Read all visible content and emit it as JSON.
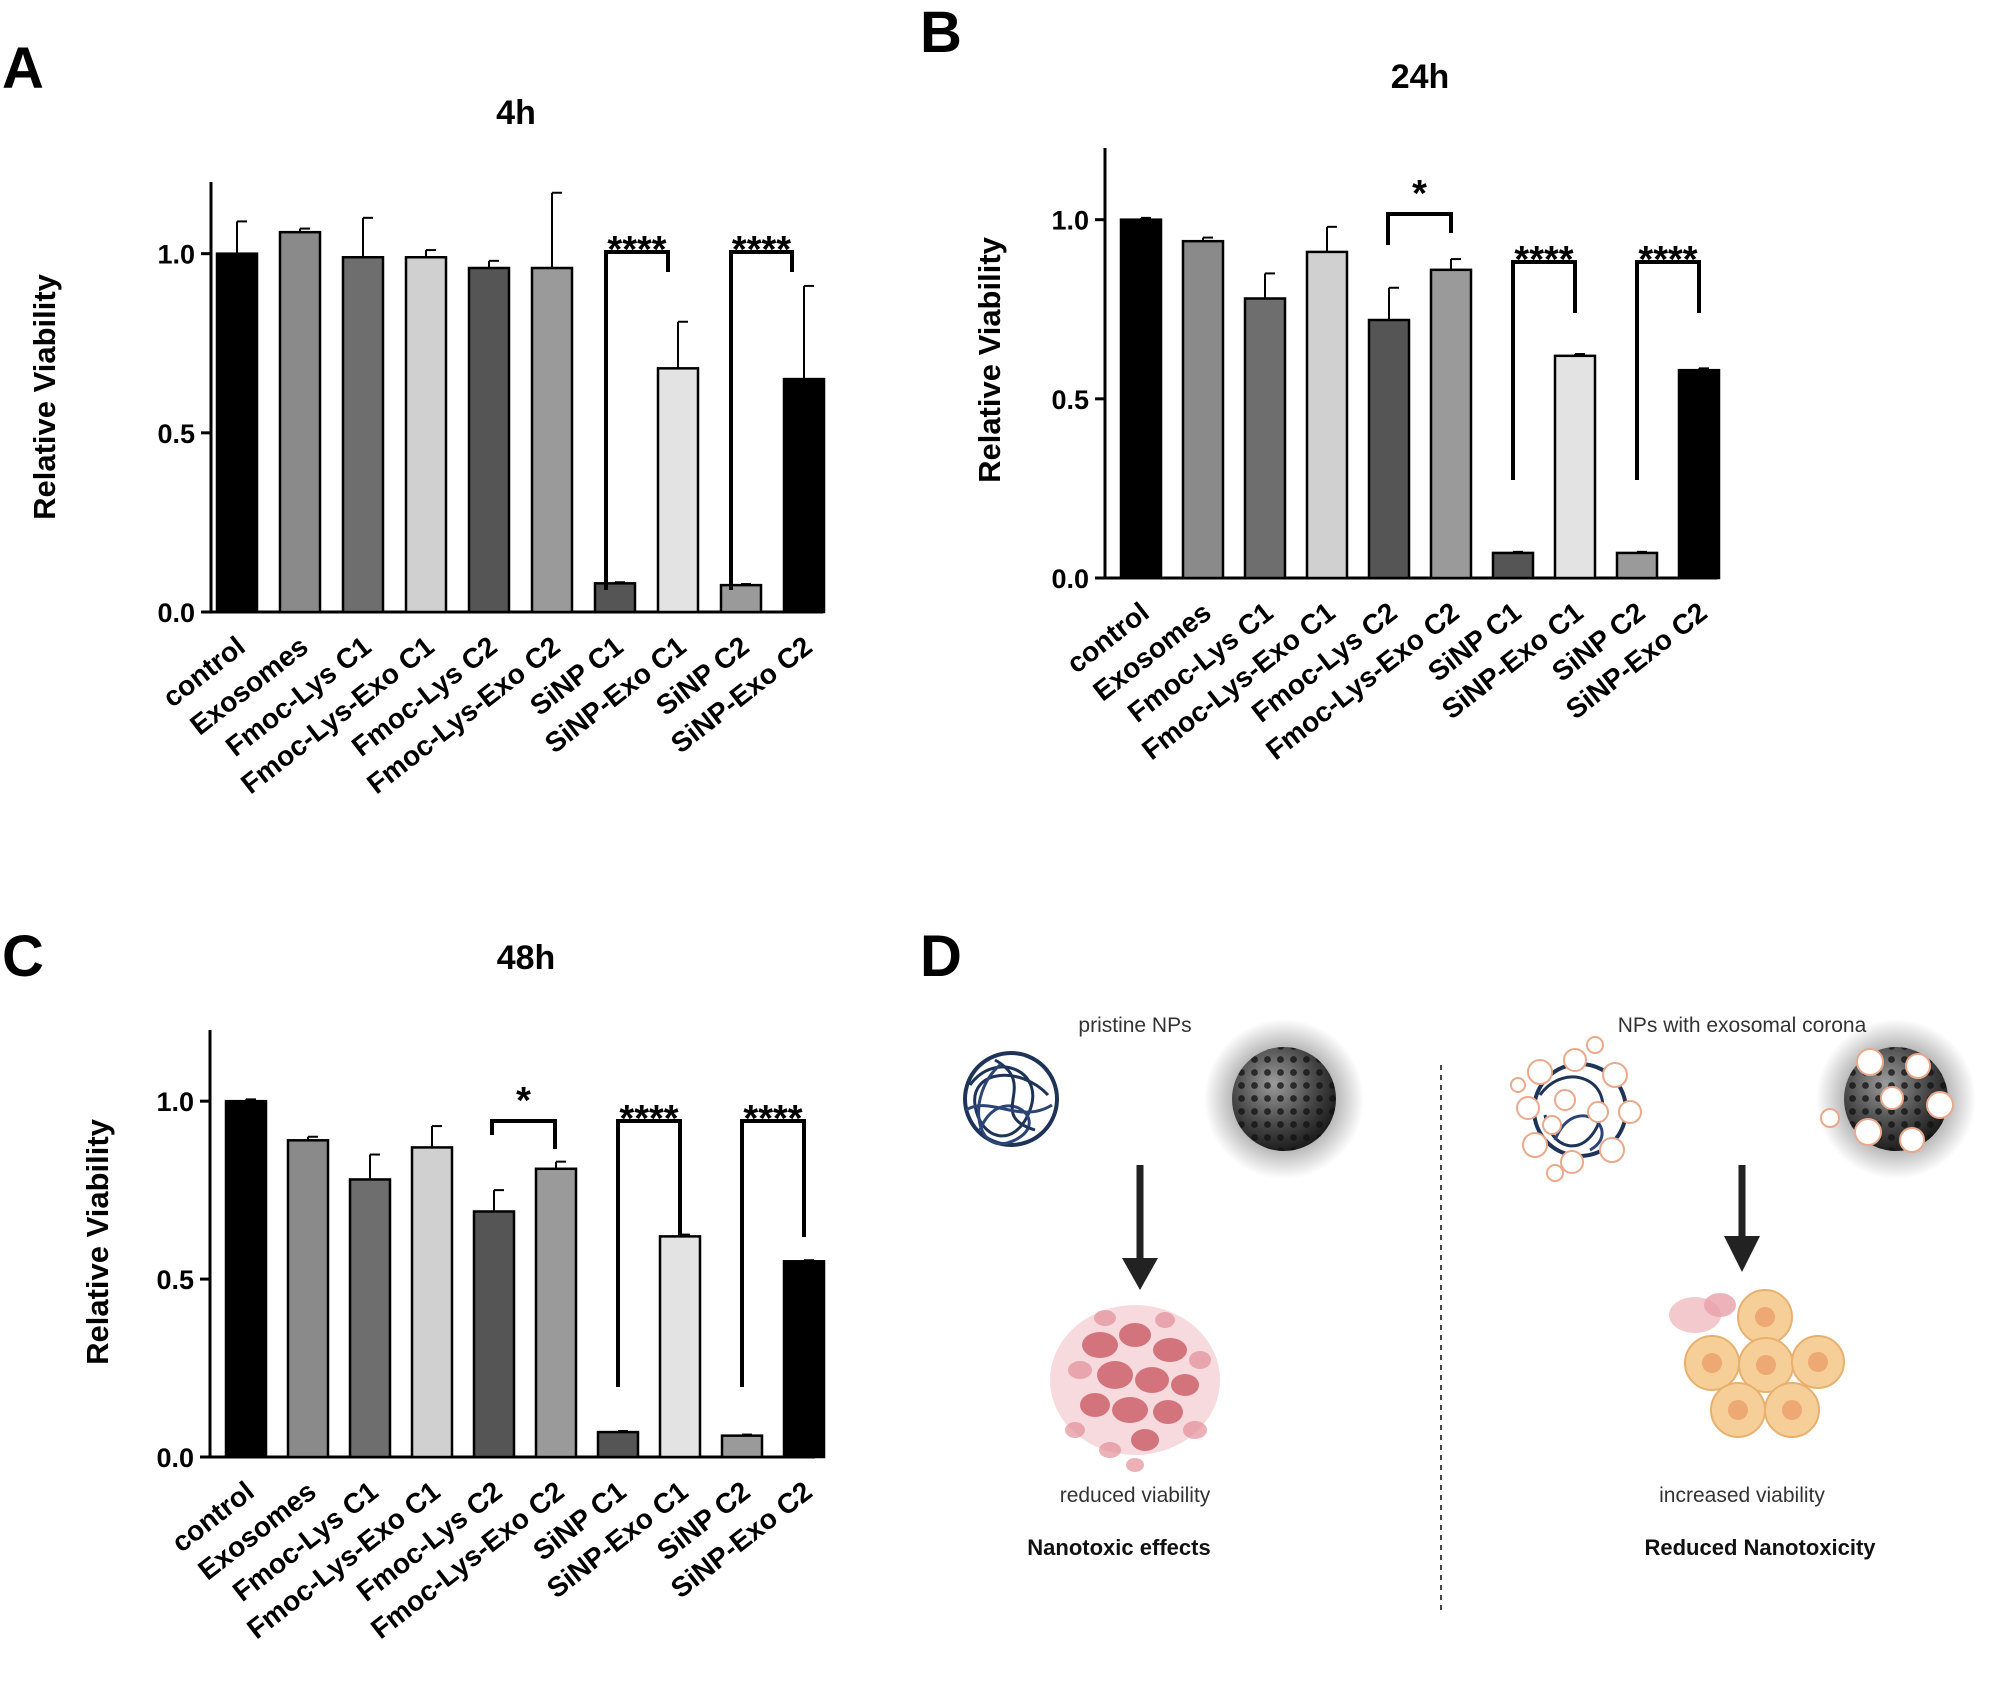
{
  "chart_data": [
    {
      "panel": "A",
      "type": "bar",
      "title": "4h",
      "xlabel": "",
      "ylabel": "Relative Viability",
      "ylim": [
        0,
        1.2
      ],
      "yticks": [
        "0.0",
        "0.5",
        "1.0"
      ],
      "categories": [
        "control",
        "Exosomes",
        "Fmoc-Lys C1",
        "Fmoc-Lys-Exo C1",
        "Fmoc-Lys C2",
        "Fmoc-Lys-Exo C2",
        "SiNP C1",
        "SiNP-Exo C1",
        "SiNP C2",
        "SiNP-Exo C2"
      ],
      "values": [
        1.0,
        1.06,
        0.99,
        0.99,
        0.96,
        0.96,
        0.08,
        0.68,
        0.075,
        0.65
      ],
      "errors": [
        0.09,
        0.01,
        0.11,
        0.02,
        0.02,
        0.21,
        0.003,
        0.13,
        0.003,
        0.26
      ],
      "colors": [
        "#000000",
        "#8a8a8a",
        "#6e6e6e",
        "#d0d0d0",
        "#555555",
        "#9a9a9a",
        "#555555",
        "#e3e3e3",
        "#9a9a9a",
        "#000000"
      ],
      "significance": [
        {
          "from": 6,
          "to": 7,
          "label": "****"
        },
        {
          "from": 8,
          "to": 9,
          "label": "****"
        }
      ]
    },
    {
      "panel": "B",
      "type": "bar",
      "title": "24h",
      "xlabel": "",
      "ylabel": "Relative Viability",
      "ylim": [
        0,
        1.2
      ],
      "yticks": [
        "0.0",
        "0.5",
        "1.0"
      ],
      "categories": [
        "control",
        "Exosomes",
        "Fmoc-Lys C1",
        "Fmoc-Lys-Exo C1",
        "Fmoc-Lys C2",
        "Fmoc-Lys-Exo C2",
        "SiNP C1",
        "SiNP-Exo C1",
        "SiNP C2",
        "SiNP-Exo C2"
      ],
      "values": [
        1.0,
        0.94,
        0.78,
        0.91,
        0.72,
        0.86,
        0.07,
        0.62,
        0.07,
        0.58
      ],
      "errors": [
        0.005,
        0.01,
        0.07,
        0.07,
        0.09,
        0.03,
        0.003,
        0.005,
        0.003,
        0.005
      ],
      "colors": [
        "#000000",
        "#8a8a8a",
        "#6e6e6e",
        "#d0d0d0",
        "#555555",
        "#9a9a9a",
        "#555555",
        "#e3e3e3",
        "#9a9a9a",
        "#000000"
      ],
      "significance": [
        {
          "from": 4,
          "to": 5,
          "label": "*"
        },
        {
          "from": 6,
          "to": 7,
          "label": "****"
        },
        {
          "from": 8,
          "to": 9,
          "label": "****"
        }
      ]
    },
    {
      "panel": "C",
      "type": "bar",
      "title": "48h",
      "xlabel": "",
      "ylabel": "Relative Viability",
      "ylim": [
        0,
        1.2
      ],
      "yticks": [
        "0.0",
        "0.5",
        "1.0"
      ],
      "categories": [
        "control",
        "Exosomes",
        "Fmoc-Lys C1",
        "Fmoc-Lys-Exo C1",
        "Fmoc-Lys C2",
        "Fmoc-Lys-Exo C2",
        "SiNP C1",
        "SiNP-Exo C1",
        "SiNP C2",
        "SiNP-Exo C2"
      ],
      "values": [
        1.0,
        0.89,
        0.78,
        0.87,
        0.69,
        0.81,
        0.07,
        0.62,
        0.06,
        0.55
      ],
      "errors": [
        0.005,
        0.01,
        0.07,
        0.06,
        0.06,
        0.02,
        0.003,
        0.005,
        0.003,
        0.003
      ],
      "colors": [
        "#000000",
        "#8a8a8a",
        "#6e6e6e",
        "#d0d0d0",
        "#555555",
        "#9a9a9a",
        "#555555",
        "#e3e3e3",
        "#9a9a9a",
        "#000000"
      ],
      "significance": [
        {
          "from": 4,
          "to": 5,
          "label": "*"
        },
        {
          "from": 6,
          "to": 7,
          "label": "****"
        },
        {
          "from": 8,
          "to": 9,
          "label": "****"
        }
      ]
    }
  ],
  "panel_letters": {
    "a": "A",
    "b": "B",
    "c": "C",
    "d": "D"
  },
  "schematic": {
    "left_title": "pristine NPs",
    "right_title": "NPs with exosomal corona",
    "left_caption": "reduced viability",
    "right_caption": "increased viability",
    "left_conclusion": "Nanotoxic effects",
    "right_conclusion": "Reduced Nanotoxicity"
  }
}
